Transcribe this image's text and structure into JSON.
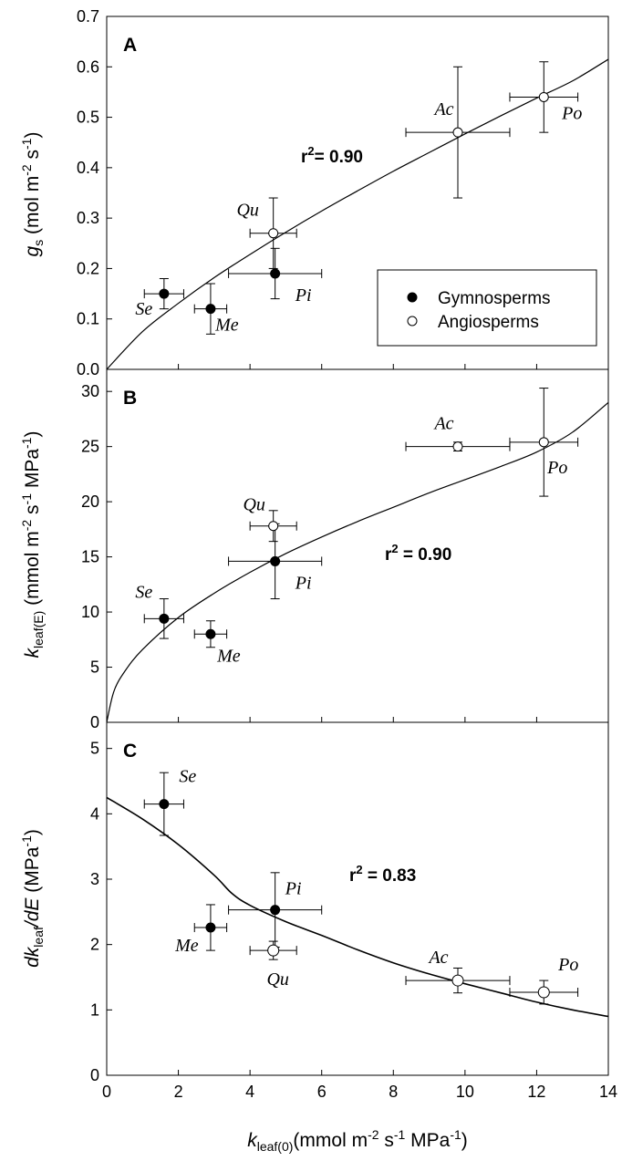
{
  "x_label": {
    "main": "k",
    "sub": "leaf(0)",
    "rest": "(mmol m",
    "sup1": "-2",
    "mid": " s",
    "sup2": "-1",
    "end": " MPa",
    "sup3": "-1",
    "close": ")"
  },
  "legend": {
    "gymno": "Gymnosperms",
    "angio": "Angiosperms"
  },
  "chart_data": [
    {
      "type": "scatter",
      "panel": "A",
      "ylabel": "g_s (mol m^-2 s^-1)",
      "ylabel_parts": {
        "main": "g",
        "sub": "s",
        "rest": " (mol m",
        "sup1": "-2",
        "mid": " s",
        "sup2": "-1",
        "close": ")"
      },
      "xlim": [
        0,
        14
      ],
      "ylim": [
        0,
        0.7
      ],
      "yticks": [
        0.0,
        0.1,
        0.2,
        0.3,
        0.4,
        0.5,
        0.6,
        0.7
      ],
      "ytick_labels": [
        "0.0",
        "0.1",
        "0.2",
        "0.3",
        "0.4",
        "0.5",
        "0.6",
        "0.7"
      ],
      "r2": {
        "pre": "r",
        "sup": "2",
        "post": "= 0.90"
      },
      "points": [
        {
          "label": "Se",
          "group": "Gymnosperms",
          "x": 1.6,
          "y": 0.15,
          "xerr": 0.55,
          "yerr": 0.03
        },
        {
          "label": "Me",
          "group": "Gymnosperms",
          "x": 2.9,
          "y": 0.12,
          "xerr": 0.45,
          "yerr": 0.05
        },
        {
          "label": "Pi",
          "group": "Gymnosperms",
          "x": 4.7,
          "y": 0.19,
          "xerr": 1.3,
          "yerr": 0.05
        },
        {
          "label": "Qu",
          "group": "Angiosperms",
          "x": 4.65,
          "y": 0.27,
          "xerr": 0.65,
          "yerr": 0.07
        },
        {
          "label": "Ac",
          "group": "Angiosperms",
          "x": 9.8,
          "y": 0.47,
          "xerr": 1.45,
          "yerr": 0.13
        },
        {
          "label": "Po",
          "group": "Angiosperms",
          "x": 12.2,
          "y": 0.54,
          "xerr": 0.95,
          "yerr": 0.07
        }
      ],
      "fit": {
        "x": [
          0,
          1,
          2,
          3,
          4,
          5,
          6,
          7,
          8,
          9,
          10,
          11,
          12,
          13,
          14
        ],
        "y": [
          0.0,
          0.075,
          0.131,
          0.182,
          0.228,
          0.272,
          0.314,
          0.354,
          0.393,
          0.43,
          0.467,
          0.503,
          0.538,
          0.572,
          0.615
        ]
      }
    },
    {
      "type": "scatter",
      "panel": "B",
      "ylabel": "k_leaf(E) (mmol m^-2 s^-1 MPa^-1)",
      "ylabel_parts": {
        "main": "k",
        "sub": "leaf(E)",
        "rest": " (mmol m",
        "sup1": "-2",
        "mid": " s",
        "sup2": "-1",
        "end": " MPa",
        "sup3": "-1",
        "close": ")"
      },
      "xlim": [
        0,
        14
      ],
      "ylim": [
        0,
        32
      ],
      "yticks": [
        0,
        5,
        10,
        15,
        20,
        25,
        30
      ],
      "ytick_labels": [
        "0",
        "5",
        "10",
        "15",
        "20",
        "25",
        "30"
      ],
      "r2": {
        "pre": "r",
        "sup": "2",
        "post": " = 0.90"
      },
      "points": [
        {
          "label": "Se",
          "group": "Gymnosperms",
          "x": 1.6,
          "y": 9.4,
          "xerr": 0.55,
          "yerr": 1.8
        },
        {
          "label": "Me",
          "group": "Gymnosperms",
          "x": 2.9,
          "y": 8.0,
          "xerr": 0.45,
          "yerr": 1.2
        },
        {
          "label": "Pi",
          "group": "Gymnosperms",
          "x": 4.7,
          "y": 14.6,
          "xerr": 1.3,
          "yerr": 3.4
        },
        {
          "label": "Qu",
          "group": "Angiosperms",
          "x": 4.65,
          "y": 17.8,
          "xerr": 0.65,
          "yerr": 1.4
        },
        {
          "label": "Ac",
          "group": "Angiosperms",
          "x": 9.8,
          "y": 25.0,
          "xerr": 1.45,
          "yerr": 0.4
        },
        {
          "label": "Po",
          "group": "Angiosperms",
          "x": 12.2,
          "y": 25.4,
          "xerr": 0.95,
          "yerr": 4.9
        }
      ],
      "fit": {
        "x": [
          0,
          0.2,
          0.5,
          1,
          2,
          3,
          4,
          5,
          6,
          7,
          8,
          9,
          10,
          11,
          12,
          13,
          14
        ],
        "y": [
          0,
          2.8,
          4.6,
          6.6,
          9.5,
          11.7,
          13.6,
          15.3,
          16.8,
          18.2,
          19.5,
          20.8,
          22.0,
          23.2,
          24.5,
          26.3,
          29.0
        ]
      }
    },
    {
      "type": "scatter",
      "panel": "C",
      "ylabel": "dk_leaf/dE (MPa^-1)",
      "ylabel_parts": {
        "pre": "dk",
        "sub": "leaf",
        "slash": "/dE",
        "rest": " (MPa",
        "sup1": "-1",
        "close": ")"
      },
      "xlim": [
        0,
        14
      ],
      "ylim": [
        0,
        5.4
      ],
      "yticks": [
        0,
        1,
        2,
        3,
        4,
        5
      ],
      "ytick_labels": [
        "0",
        "1",
        "2",
        "3",
        "4",
        "5"
      ],
      "xticks": [
        0,
        2,
        4,
        6,
        8,
        10,
        12,
        14
      ],
      "xtick_labels": [
        "0",
        "2",
        "4",
        "6",
        "8",
        "10",
        "12",
        "14"
      ],
      "r2": {
        "pre": "r",
        "sup": "2",
        "post": " = 0.83"
      },
      "points": [
        {
          "label": "Se",
          "group": "Gymnosperms",
          "x": 1.6,
          "y": 4.15,
          "xerr": 0.55,
          "yerr": 0.48
        },
        {
          "label": "Me",
          "group": "Gymnosperms",
          "x": 2.9,
          "y": 2.26,
          "xerr": 0.45,
          "yerr": 0.35
        },
        {
          "label": "Pi",
          "group": "Gymnosperms",
          "x": 4.7,
          "y": 2.53,
          "xerr": 1.3,
          "yerr": 0.57
        },
        {
          "label": "Qu",
          "group": "Angiosperms",
          "x": 4.65,
          "y": 1.91,
          "xerr": 0.65,
          "yerr": 0.14
        },
        {
          "label": "Ac",
          "group": "Angiosperms",
          "x": 9.8,
          "y": 1.45,
          "xerr": 1.45,
          "yerr": 0.19
        },
        {
          "label": "Po",
          "group": "Angiosperms",
          "x": 12.2,
          "y": 1.27,
          "xerr": 0.95,
          "yerr": 0.18
        }
      ],
      "fit": {
        "x": [
          0,
          1,
          2,
          3,
          3.5,
          4,
          5,
          6,
          7,
          8,
          9,
          10,
          11,
          12,
          13,
          14
        ],
        "y": [
          4.25,
          3.92,
          3.53,
          3.06,
          2.78,
          2.6,
          2.35,
          2.14,
          1.92,
          1.72,
          1.55,
          1.4,
          1.26,
          1.12,
          1.0,
          0.9
        ]
      }
    }
  ]
}
